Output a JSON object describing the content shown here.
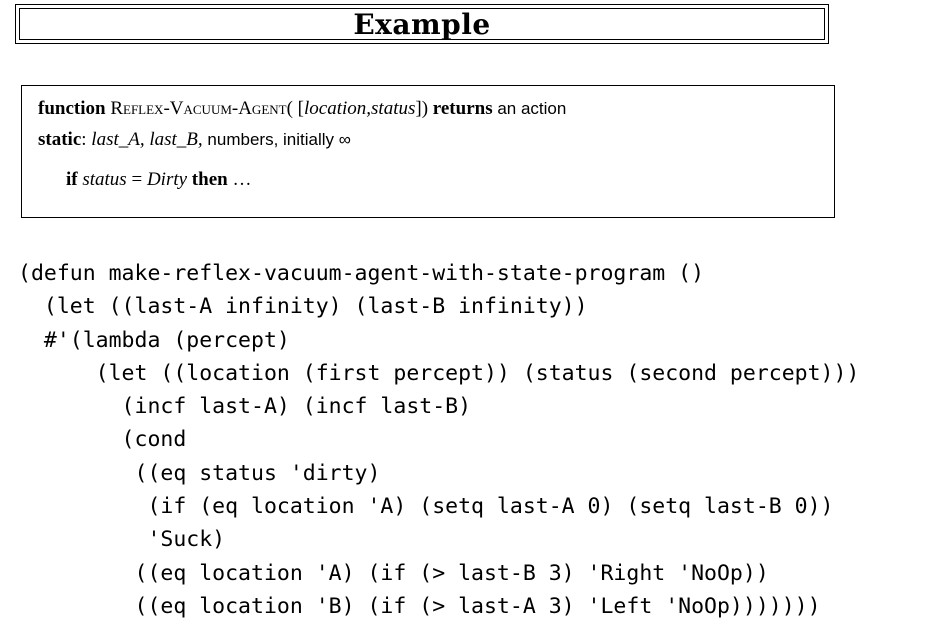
{
  "title": "Example",
  "algorithm": {
    "line1": {
      "keyword_function": "function",
      "name": "Reflex-Vacuum-Agent",
      "open": "( [",
      "params": "location,status",
      "close": "])",
      "keyword_returns": "returns",
      "rest": "an action"
    },
    "line2": {
      "keyword_static": "static",
      "colon": ":",
      "vars": "last_A, last_B,",
      "rest": "numbers, initially ∞"
    },
    "line3": {
      "keyword_if": "if",
      "cond_var": "status",
      "eq": "=",
      "cond_val": "Dirty",
      "keyword_then": "then",
      "ellipsis": "…"
    }
  },
  "code_lines": [
    "(defun make-reflex-vacuum-agent-with-state-program ()",
    "  (let ((last-A infinity) (last-B infinity))",
    "  #'(lambda (percept)",
    "      (let ((location (first percept)) (status (second percept)))",
    "        (incf last-A) (incf last-B)",
    "        (cond",
    "         ((eq status 'dirty)",
    "          (if (eq location 'A) (setq last-A 0) (setq last-B 0))",
    "          'Suck)",
    "         ((eq location 'A) (if (> last-B 3) 'Right 'NoOp))",
    "         ((eq location 'B) (if (> last-A 3) 'Left 'NoOp)))))))"
  ]
}
